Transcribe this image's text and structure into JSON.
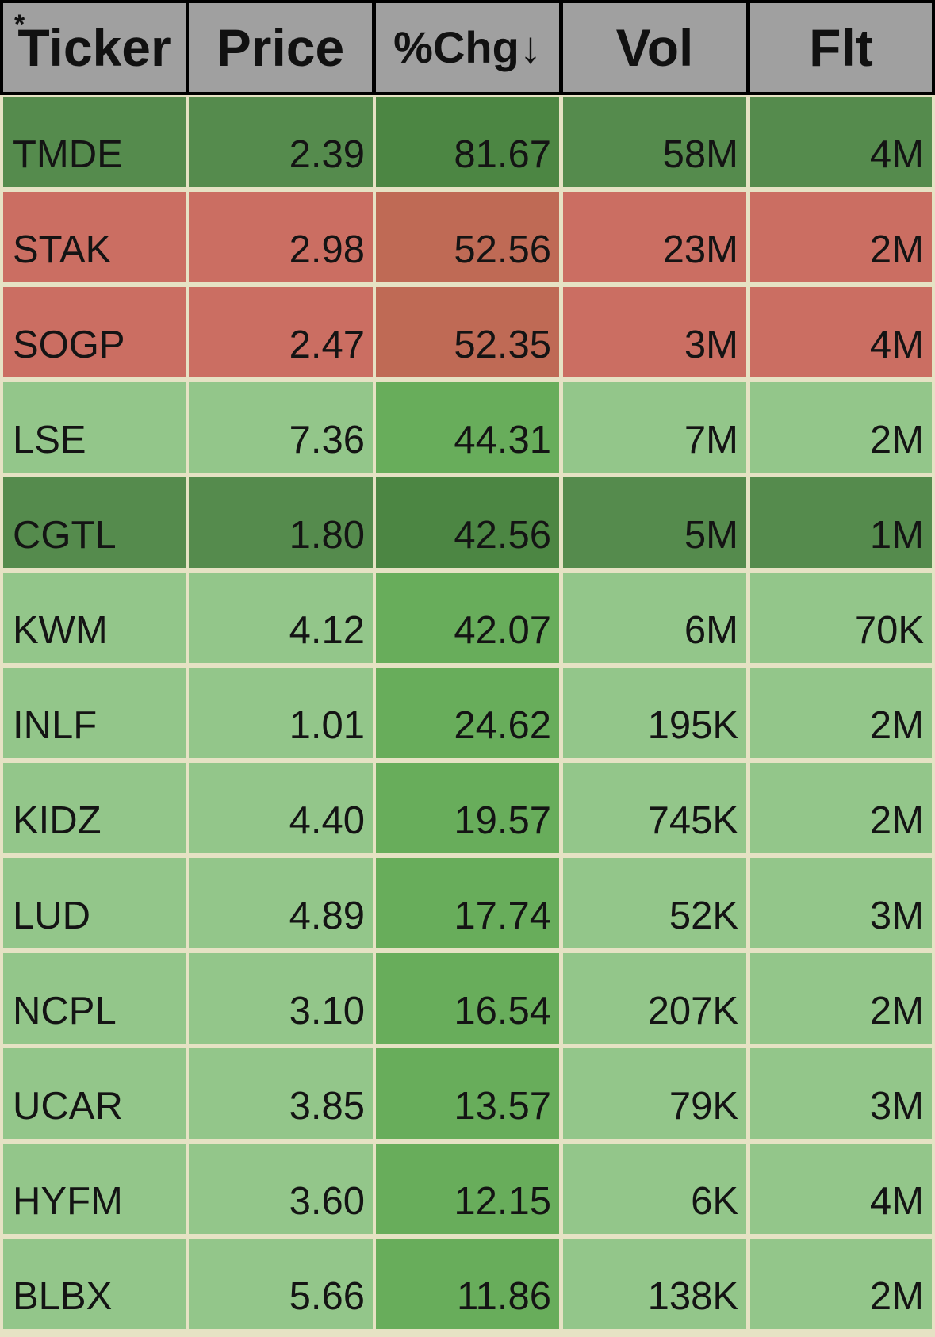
{
  "headers": {
    "ticker": "Ticker",
    "price": "Price",
    "chg": "%Chg↓",
    "vol": "Vol",
    "flt": "Flt",
    "sort_marker": "*"
  },
  "colors": {
    "dark_green": "#558b4d",
    "dark_green_chg": "#4c8643",
    "red": "#cb6e62",
    "red_chg": "#bf6a55",
    "light_green": "#93c68a",
    "light_green_chg": "#68ad5b",
    "header_bg": "#a0a0a0",
    "grid": "#e6e2c4"
  },
  "rows": [
    {
      "ticker": "TMDE",
      "price": "2.39",
      "chg": "81.67",
      "vol": "58M",
      "flt": "4M",
      "tone": "dark_green"
    },
    {
      "ticker": "STAK",
      "price": "2.98",
      "chg": "52.56",
      "vol": "23M",
      "flt": "2M",
      "tone": "red"
    },
    {
      "ticker": "SOGP",
      "price": "2.47",
      "chg": "52.35",
      "vol": "3M",
      "flt": "4M",
      "tone": "red"
    },
    {
      "ticker": "LSE",
      "price": "7.36",
      "chg": "44.31",
      "vol": "7M",
      "flt": "2M",
      "tone": "light_green"
    },
    {
      "ticker": "CGTL",
      "price": "1.80",
      "chg": "42.56",
      "vol": "5M",
      "flt": "1M",
      "tone": "dark_green"
    },
    {
      "ticker": "KWM",
      "price": "4.12",
      "chg": "42.07",
      "vol": "6M",
      "flt": "70K",
      "tone": "light_green"
    },
    {
      "ticker": "INLF",
      "price": "1.01",
      "chg": "24.62",
      "vol": "195K",
      "flt": "2M",
      "tone": "light_green"
    },
    {
      "ticker": "KIDZ",
      "price": "4.40",
      "chg": "19.57",
      "vol": "745K",
      "flt": "2M",
      "tone": "light_green"
    },
    {
      "ticker": "LUD",
      "price": "4.89",
      "chg": "17.74",
      "vol": "52K",
      "flt": "3M",
      "tone": "light_green"
    },
    {
      "ticker": "NCPL",
      "price": "3.10",
      "chg": "16.54",
      "vol": "207K",
      "flt": "2M",
      "tone": "light_green"
    },
    {
      "ticker": "UCAR",
      "price": "3.85",
      "chg": "13.57",
      "vol": "79K",
      "flt": "3M",
      "tone": "light_green"
    },
    {
      "ticker": "HYFM",
      "price": "3.60",
      "chg": "12.15",
      "vol": "6K",
      "flt": "4M",
      "tone": "light_green"
    },
    {
      "ticker": "BLBX",
      "price": "5.66",
      "chg": "11.86",
      "vol": "138K",
      "flt": "2M",
      "tone": "light_green"
    }
  ]
}
